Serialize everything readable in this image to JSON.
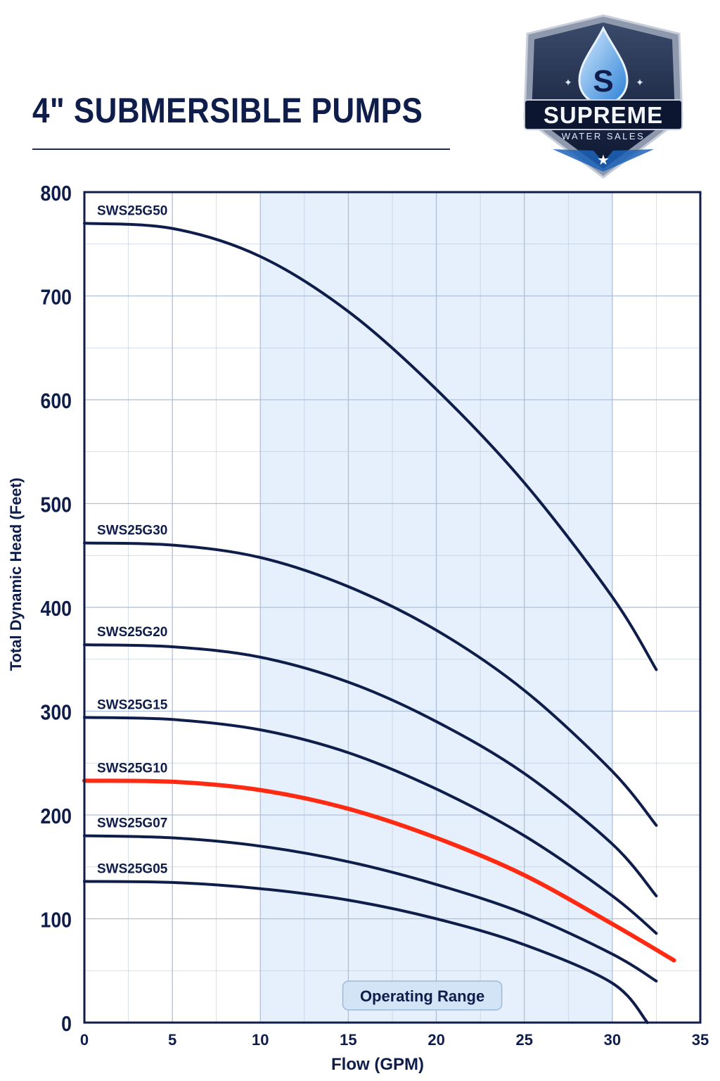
{
  "header": {
    "title": "4\" SUBMERSIBLE PUMPS"
  },
  "logo": {
    "icon": "water-drop-s-shield-icon",
    "letter": "S",
    "brand": "SUPREME",
    "tagline": "WATER SALES"
  },
  "colors": {
    "navy": "#0f1d4a",
    "highlight": "#ff2a12",
    "grid": "#aebfd8",
    "range_fill": "#e6f0fc"
  },
  "chart_data": {
    "type": "line",
    "xlabel": "Flow (GPM)",
    "ylabel": "Total Dynamic Head (Feet)",
    "xlim": [
      0,
      35
    ],
    "ylim": [
      0,
      800
    ],
    "x_ticks": [
      0,
      5,
      10,
      15,
      20,
      25,
      30,
      35
    ],
    "y_ticks": [
      0,
      100,
      200,
      300,
      400,
      500,
      600,
      700,
      800
    ],
    "grid": true,
    "operating_range": {
      "label": "Operating Range",
      "x": [
        10,
        30
      ]
    },
    "series": [
      {
        "name": "SWS25G50",
        "highlight": false,
        "points": [
          [
            0,
            770
          ],
          [
            5,
            765
          ],
          [
            10,
            738
          ],
          [
            15,
            685
          ],
          [
            20,
            610
          ],
          [
            25,
            520
          ],
          [
            30,
            410
          ],
          [
            32.5,
            340
          ]
        ]
      },
      {
        "name": "SWS25G30",
        "highlight": false,
        "points": [
          [
            0,
            462
          ],
          [
            5,
            460
          ],
          [
            10,
            448
          ],
          [
            15,
            420
          ],
          [
            20,
            378
          ],
          [
            25,
            320
          ],
          [
            30,
            242
          ],
          [
            32.5,
            190
          ]
        ]
      },
      {
        "name": "SWS25G20",
        "highlight": false,
        "points": [
          [
            0,
            364
          ],
          [
            5,
            362
          ],
          [
            10,
            352
          ],
          [
            15,
            328
          ],
          [
            20,
            290
          ],
          [
            25,
            240
          ],
          [
            30,
            172
          ],
          [
            32.5,
            122
          ]
        ]
      },
      {
        "name": "SWS25G15",
        "highlight": false,
        "points": [
          [
            0,
            294
          ],
          [
            5,
            292
          ],
          [
            10,
            282
          ],
          [
            15,
            260
          ],
          [
            20,
            225
          ],
          [
            25,
            180
          ],
          [
            30,
            122
          ],
          [
            32.5,
            86
          ]
        ]
      },
      {
        "name": "SWS25G10",
        "highlight": true,
        "points": [
          [
            0,
            233
          ],
          [
            5,
            232
          ],
          [
            10,
            224
          ],
          [
            15,
            206
          ],
          [
            20,
            178
          ],
          [
            25,
            142
          ],
          [
            30,
            95
          ],
          [
            33.5,
            60
          ]
        ]
      },
      {
        "name": "SWS25G07",
        "highlight": false,
        "points": [
          [
            0,
            180
          ],
          [
            5,
            178
          ],
          [
            10,
            170
          ],
          [
            15,
            155
          ],
          [
            20,
            133
          ],
          [
            25,
            105
          ],
          [
            30,
            66
          ],
          [
            32.5,
            40
          ]
        ]
      },
      {
        "name": "SWS25G05",
        "highlight": false,
        "points": [
          [
            0,
            136
          ],
          [
            5,
            135
          ],
          [
            10,
            129
          ],
          [
            15,
            118
          ],
          [
            20,
            100
          ],
          [
            25,
            75
          ],
          [
            30,
            38
          ],
          [
            32,
            0
          ]
        ]
      }
    ]
  }
}
